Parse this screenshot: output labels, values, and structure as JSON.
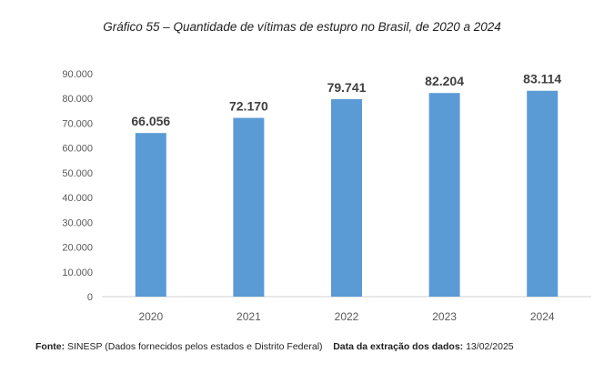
{
  "chart_data": {
    "type": "bar",
    "title": "Gráfico 55 – Quantidade de vítimas de estupro no Brasil, de 2020 a 2024",
    "categories": [
      "2020",
      "2021",
      "2022",
      "2023",
      "2024"
    ],
    "values": [
      66056,
      72170,
      79741,
      82204,
      83114
    ],
    "value_labels": [
      "66.056",
      "72.170",
      "79.741",
      "82.204",
      "83.114"
    ],
    "ylim": [
      0,
      90000
    ],
    "yticks": [
      0,
      10000,
      20000,
      30000,
      40000,
      50000,
      60000,
      70000,
      80000,
      90000
    ],
    "ytick_labels": [
      "0",
      "10.000",
      "20.000",
      "30.000",
      "40.000",
      "50.000",
      "60.000",
      "70.000",
      "80.000",
      "90.000"
    ],
    "bar_color": "#5b9bd5",
    "grid": false,
    "legend": "none"
  },
  "footer": {
    "source_label": "Fonte:",
    "source_text": "SINESP (Dados fornecidos pelos estados e Distrito Federal)",
    "extraction_label": "Data da extração dos dados:",
    "extraction_date": "13/02/2025"
  }
}
